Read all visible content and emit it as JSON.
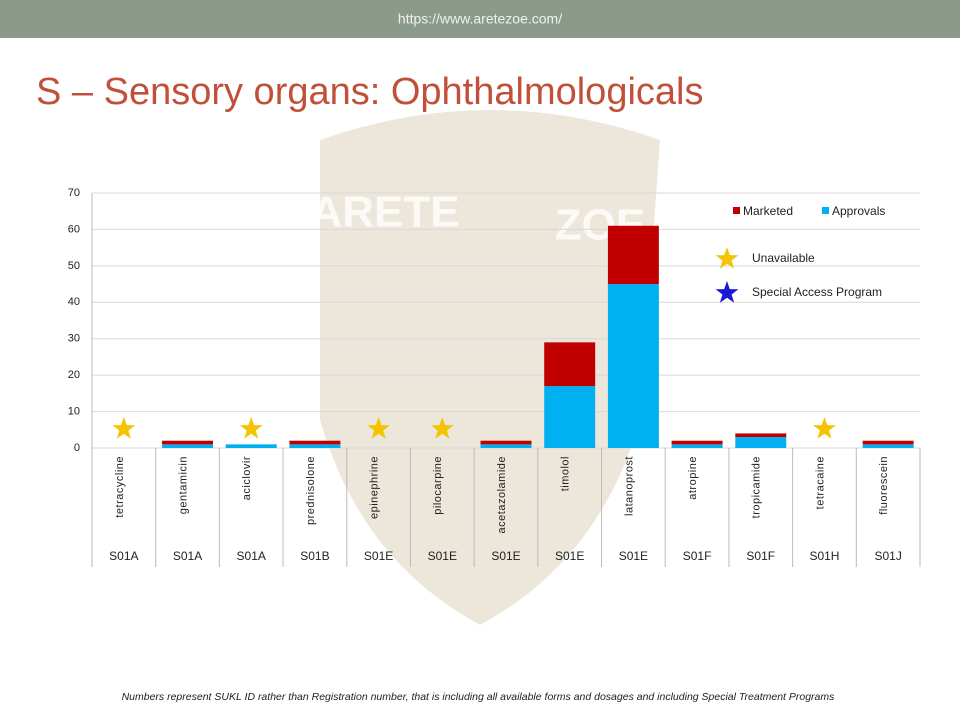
{
  "header": {
    "url": "https://www.aretezoe.com/"
  },
  "title": "S – Sensory organs: Ophthalmologicals",
  "watermark": [
    "ARETE",
    "ZOE"
  ],
  "footnote": "Numbers represent SUKL ID rather than Registration number, that is including all available forms and dosages and including Special Treatment Programs",
  "chart_data": {
    "type": "stacked_bar",
    "categories": [
      "tetracycline",
      "gentamicin",
      "aciclovir",
      "prednisolone",
      "epinephrine",
      "pilocarpine",
      "acetazolamide",
      "timolol",
      "latanoprost",
      "atropine",
      "tropicamide",
      "tetracaine",
      "fluorescein"
    ],
    "groups": [
      "S01A",
      "S01A",
      "S01A",
      "S01B",
      "S01E",
      "S01E",
      "S01E",
      "S01E",
      "S01E",
      "S01F",
      "S01F",
      "S01H",
      "S01J"
    ],
    "series": [
      {
        "name": "Approvals",
        "color": "#00b0f0",
        "values": [
          0,
          1,
          1,
          1,
          0,
          0,
          1,
          17,
          45,
          1,
          3,
          0,
          1
        ]
      },
      {
        "name": "Marketed",
        "color": "#c00000",
        "values": [
          0,
          1,
          0,
          1,
          0,
          0,
          1,
          12,
          16,
          1,
          1,
          0,
          1
        ]
      }
    ],
    "legend_order": [
      1,
      0
    ],
    "unavailable": [
      true,
      false,
      true,
      false,
      true,
      true,
      false,
      false,
      false,
      false,
      false,
      true,
      false
    ],
    "markers": [
      {
        "label": "Unavailable",
        "color": "#f5c400"
      },
      {
        "label": "Special Access Program",
        "color": "#1a1ad0"
      }
    ],
    "ylim": [
      0,
      70
    ],
    "yticks": [
      0,
      10,
      20,
      30,
      40,
      50,
      60,
      70
    ],
    "grid": true
  }
}
